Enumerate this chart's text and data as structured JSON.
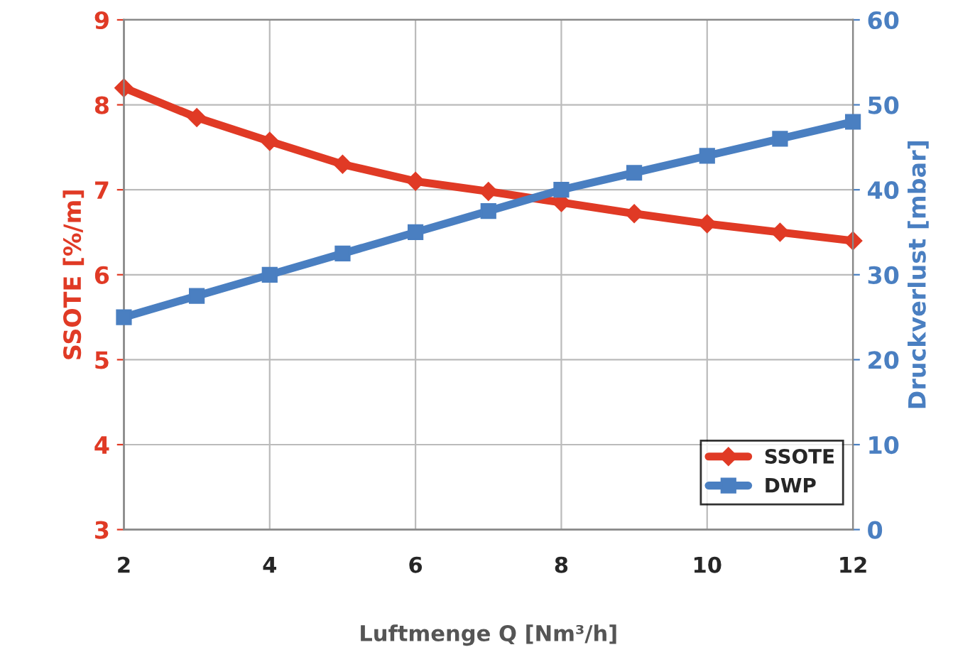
{
  "chart_data": {
    "type": "line",
    "xlabel": "Luftmenge Q [Nm³/h]",
    "ylabel": "SSOTE [%/m]",
    "y2label": "Druckverlust [mbar]",
    "x": [
      2,
      3,
      4,
      5,
      6,
      7,
      8,
      9,
      10,
      11,
      12
    ],
    "series": [
      {
        "name": "SSOTE",
        "color": "#e03a25",
        "marker": "diamond",
        "values": [
          8.2,
          7.85,
          7.57,
          7.3,
          7.1,
          6.98,
          6.85,
          6.72,
          6.6,
          6.5,
          6.4
        ]
      },
      {
        "name": "DWP",
        "color": "#4a7fc1",
        "marker": "square",
        "axis": "y2",
        "values": [
          25,
          27.5,
          30,
          32.5,
          35,
          37.5,
          40,
          42,
          44,
          46,
          48
        ]
      }
    ],
    "xlim": [
      2,
      12
    ],
    "xticks": [
      2,
      4,
      6,
      8,
      10,
      12
    ],
    "ylim": [
      3,
      9
    ],
    "yticks": [
      3,
      4,
      5,
      6,
      7,
      8,
      9
    ],
    "y2lim": [
      0,
      60
    ],
    "y2ticks": [
      0,
      10,
      20,
      30,
      40,
      50,
      60
    ],
    "grid": true,
    "legend": "bottom right",
    "line_style": "solid"
  }
}
